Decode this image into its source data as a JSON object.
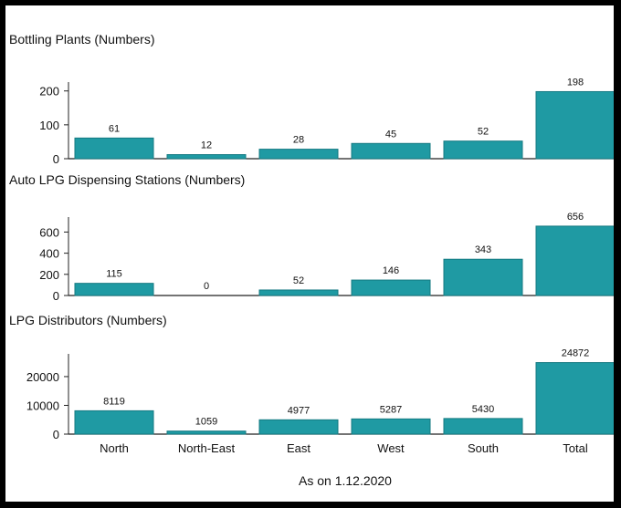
{
  "colors": {
    "bar": "#1f9aa3",
    "bar_edge": "#157a82",
    "axis": "#222222",
    "background": "#ffffff"
  },
  "footer": "As on 1.12.2020",
  "chart_data": [
    {
      "type": "bar",
      "title": "Bottling Plants (Numbers)",
      "categories": [
        "North",
        "North-East",
        "East",
        "West",
        "South",
        "Total"
      ],
      "values": [
        61,
        12,
        28,
        45,
        52,
        198
      ],
      "yticks": [
        0,
        100,
        200
      ],
      "ylim": [
        0,
        210
      ],
      "show_category_labels": false
    },
    {
      "type": "bar",
      "title": "Auto LPG Dispensing Stations (Numbers)",
      "categories": [
        "North",
        "North-East",
        "East",
        "West",
        "South",
        "Total"
      ],
      "values": [
        115,
        0,
        52,
        146,
        343,
        656
      ],
      "yticks": [
        0,
        200,
        400,
        600
      ],
      "ylim": [
        0,
        690
      ],
      "show_category_labels": false
    },
    {
      "type": "bar",
      "title": "LPG Distributors (Numbers)",
      "categories": [
        "North",
        "North-East",
        "East",
        "West",
        "South",
        "Total"
      ],
      "values": [
        8119,
        1059,
        4977,
        5287,
        5430,
        24872
      ],
      "yticks": [
        0,
        10000,
        20000
      ],
      "ylim": [
        0,
        26000
      ],
      "show_category_labels": true
    }
  ]
}
